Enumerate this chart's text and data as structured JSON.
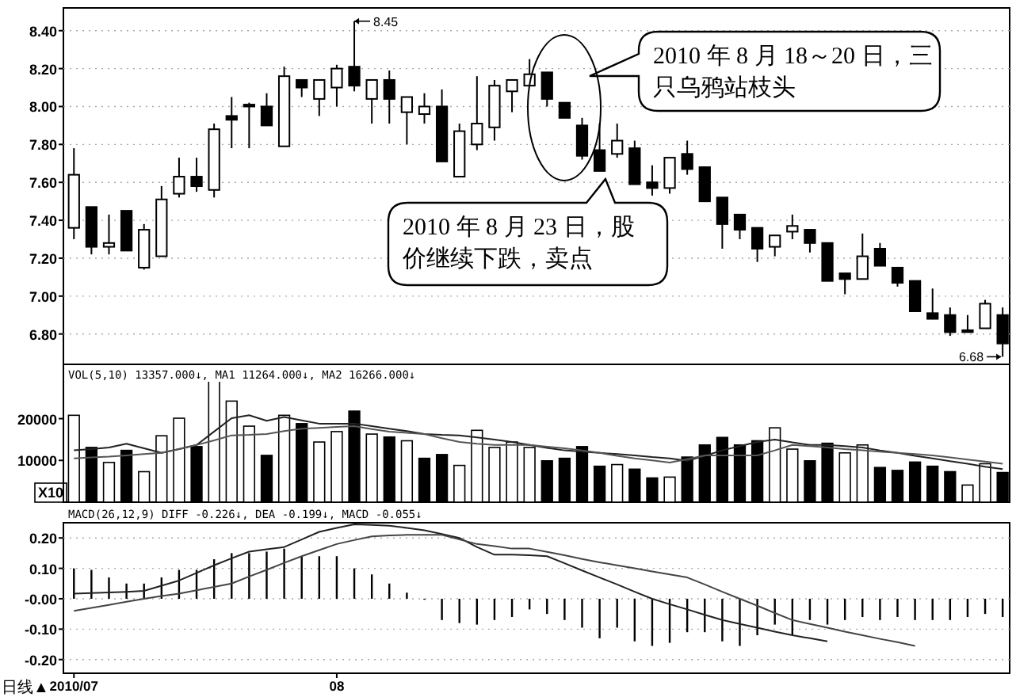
{
  "chart_data": [
    {
      "type": "candlestick",
      "ylim": [
        6.64,
        8.52
      ],
      "grid": "y",
      "tick_labels": "y",
      "yticks": [
        {
          "value": 6.8,
          "label": "6.80"
        },
        {
          "value": 7,
          "label": "7.00"
        },
        {
          "value": 7.2,
          "label": "7.20"
        },
        {
          "value": 7.4,
          "label": "7.40"
        },
        {
          "value": 7.6,
          "label": "7.60"
        },
        {
          "value": 7.8,
          "label": "7.80"
        },
        {
          "value": 8,
          "label": "8.00"
        },
        {
          "value": 8.2,
          "label": "8.20"
        },
        {
          "value": 8.4,
          "label": "8.40"
        }
      ],
      "categories": [
        null,
        null,
        null,
        null,
        null,
        null,
        null,
        null,
        null,
        null,
        null,
        null,
        null,
        null,
        null,
        null,
        null,
        null,
        null,
        null,
        null,
        null,
        null,
        null,
        null,
        null,
        null,
        null,
        null,
        null,
        null,
        null,
        null,
        null,
        null,
        null,
        null,
        null,
        null,
        null,
        null,
        null,
        null,
        null,
        null,
        null,
        null,
        null,
        null,
        null,
        null,
        null,
        null,
        null
      ],
      "ohlc": [
        [
          7.36,
          7.78,
          7.3,
          7.64
        ],
        [
          7.47,
          7.47,
          7.22,
          7.26
        ],
        [
          7.26,
          7.43,
          7.22,
          7.28
        ],
        [
          7.45,
          7.45,
          7.24,
          7.24
        ],
        [
          7.15,
          7.38,
          7.14,
          7.35
        ],
        [
          7.21,
          7.58,
          7.21,
          7.51
        ],
        [
          7.54,
          7.73,
          7.52,
          7.63
        ],
        [
          7.63,
          7.73,
          7.55,
          7.58
        ],
        [
          7.56,
          7.91,
          7.52,
          7.88
        ],
        [
          7.95,
          8.05,
          7.78,
          7.93
        ],
        [
          8.01,
          8.02,
          7.78,
          8.0
        ],
        [
          8.0,
          8.07,
          7.9,
          7.9
        ],
        [
          7.79,
          8.21,
          7.79,
          8.16
        ],
        [
          8.14,
          8.14,
          8.05,
          8.1
        ],
        [
          8.04,
          8.14,
          7.95,
          8.14
        ],
        [
          8.1,
          8.22,
          8.0,
          8.2
        ],
        [
          8.21,
          8.45,
          8.08,
          8.11
        ],
        [
          8.04,
          8.14,
          7.91,
          8.14
        ],
        [
          8.14,
          8.19,
          7.91,
          8.04
        ],
        [
          7.97,
          8.05,
          7.8,
          8.05
        ],
        [
          7.96,
          8.07,
          7.91,
          8.0
        ],
        [
          8.0,
          8.09,
          7.71,
          7.71
        ],
        [
          7.63,
          7.91,
          7.63,
          7.87
        ],
        [
          7.8,
          8.16,
          7.77,
          7.91
        ],
        [
          7.89,
          8.14,
          7.82,
          8.11
        ],
        [
          8.08,
          8.14,
          7.97,
          8.14
        ],
        [
          8.11,
          8.25,
          8.11,
          8.17
        ],
        [
          8.18,
          8.18,
          8.0,
          8.04
        ],
        [
          8.02,
          8.02,
          7.94,
          7.94
        ],
        [
          7.9,
          7.94,
          7.72,
          7.74
        ],
        [
          7.77,
          7.91,
          7.66,
          7.66
        ],
        [
          7.75,
          7.91,
          7.73,
          7.82
        ],
        [
          7.78,
          7.82,
          7.59,
          7.59
        ],
        [
          7.6,
          7.69,
          7.53,
          7.57
        ],
        [
          7.57,
          7.73,
          7.54,
          7.73
        ],
        [
          7.75,
          7.82,
          7.64,
          7.67
        ],
        [
          7.68,
          7.68,
          7.5,
          7.5
        ],
        [
          7.52,
          7.52,
          7.25,
          7.38
        ],
        [
          7.43,
          7.43,
          7.3,
          7.35
        ],
        [
          7.36,
          7.36,
          7.18,
          7.25
        ],
        [
          7.26,
          7.32,
          7.21,
          7.32
        ],
        [
          7.34,
          7.43,
          7.3,
          7.37
        ],
        [
          7.35,
          7.35,
          7.23,
          7.28
        ],
        [
          7.28,
          7.28,
          7.08,
          7.08
        ],
        [
          7.12,
          7.12,
          7.01,
          7.09
        ],
        [
          7.09,
          7.33,
          7.09,
          7.21
        ],
        [
          7.25,
          7.28,
          7.16,
          7.16
        ],
        [
          7.15,
          7.15,
          7.05,
          7.07
        ],
        [
          7.08,
          7.08,
          6.92,
          6.92
        ],
        [
          6.91,
          7.04,
          6.88,
          6.88
        ],
        [
          6.9,
          6.94,
          6.79,
          6.81
        ],
        [
          6.82,
          6.9,
          6.81,
          6.81
        ],
        [
          6.83,
          6.98,
          6.83,
          6.96
        ],
        [
          6.9,
          6.94,
          6.68,
          6.75
        ]
      ],
      "annotations": [
        "2010 年 8 月 18～20 日，三只乌鸦站枝头",
        "2010 年 8 月 23 日，股价继续下跌，卖点",
        "8.45",
        "6.68"
      ]
    },
    {
      "type": "bar",
      "ylim": [
        0,
        33000
      ],
      "tick_labels": "y",
      "yticks": [
        10000,
        20000
      ],
      "categories": [
        null,
        null,
        null,
        null,
        null,
        null,
        null,
        null,
        null,
        null,
        null,
        null,
        null,
        null,
        null,
        null,
        null,
        null,
        null,
        null,
        null,
        null,
        null,
        null,
        null,
        null,
        null,
        null,
        null,
        null,
        null,
        null,
        null,
        null,
        null,
        null,
        null,
        null,
        null,
        null,
        null,
        null,
        null,
        null,
        null,
        null,
        null,
        null,
        null,
        null,
        null,
        null,
        null,
        null
      ],
      "values": [
        20800,
        13100,
        9500,
        12400,
        7300,
        15900,
        20100,
        13300,
        29100,
        24200,
        18200,
        11200,
        20800,
        18800,
        14400,
        16900,
        21800,
        16300,
        15600,
        14700,
        10500,
        11400,
        8800,
        17200,
        13100,
        14400,
        13100,
        9900,
        10500,
        13300,
        8600,
        9000,
        7900,
        5800,
        6000,
        10800,
        13700,
        15500,
        13700,
        14700,
        17800,
        12700,
        9900,
        14100,
        11800,
        13700,
        8300,
        7600,
        9600,
        8600,
        7300,
        4100,
        9200,
        7100
      ],
      "colors": [
        "#ffffff",
        "#000000",
        "#ffffff",
        "#000000",
        "#ffffff",
        "#ffffff",
        "#ffffff",
        "#000000",
        "#ffffff",
        "#ffffff",
        "#ffffff",
        "#000000",
        "#ffffff",
        "#000000",
        "#ffffff",
        "#ffffff",
        "#000000",
        "#ffffff",
        "#000000",
        "#ffffff",
        "#000000",
        "#000000",
        "#ffffff",
        "#ffffff",
        "#ffffff",
        "#ffffff",
        "#ffffff",
        "#000000",
        "#000000",
        "#000000",
        "#000000",
        "#ffffff",
        "#000000",
        "#000000",
        "#ffffff",
        "#000000",
        "#000000",
        "#000000",
        "#000000",
        "#000000",
        "#ffffff",
        "#ffffff",
        "#000000",
        "#000000",
        "#ffffff",
        "#ffffff",
        "#000000",
        "#000000",
        "#000000",
        "#000000",
        "#000000",
        "#ffffff",
        "#ffffff",
        "#000000"
      ],
      "series": [
        {
          "type": "line",
          "color": "#222222",
          "values": [
            12400,
            12700,
            13100,
            14000,
            12900,
            11800,
            12700,
            13700,
            16900,
            20100,
            20800,
            19500,
            20400,
            19600,
            18800,
            18800,
            18800,
            18200,
            17600,
            17000,
            16300,
            16100,
            16000,
            15500,
            15000,
            14400,
            13700,
            13000,
            12400,
            12100,
            11800,
            11500,
            11200,
            10800,
            10500,
            9900,
            11100,
            12400,
            13400,
            14400,
            15000,
            14300,
            13700,
            13700,
            13400,
            13100,
            12400,
            11800,
            11100,
            10500,
            9800,
            9200,
            8500,
            7900
          ]
        },
        {
          "type": "line",
          "color": "#555555",
          "values": [
            10500,
            10700,
            10900,
            11200,
            11500,
            11800,
            12700,
            13700,
            14800,
            16000,
            16100,
            16300,
            17000,
            17600,
            17800,
            18000,
            18200,
            17500,
            16900,
            16600,
            16300,
            15300,
            14400,
            14000,
            13700,
            13700,
            13700,
            13300,
            12900,
            12400,
            11800,
            11100,
            10500,
            10000,
            9500,
            10300,
            11200,
            11200,
            11200,
            11200,
            12400,
            13700,
            13400,
            13100,
            12700,
            12400,
            12100,
            11800,
            11500,
            11200,
            10700,
            10200,
            9700,
            9200
          ]
        }
      ],
      "annotations": [
        "VOL(5,10) 13357.000↓, MA1 11264.000↓, MA2 16266.000↓",
        "X10"
      ]
    },
    {
      "type": "bar",
      "ylim": [
        -0.245,
        0.25
      ],
      "grid": "y",
      "yticks": [
        {
          "value": -0.2,
          "label": "-0.20"
        },
        {
          "value": -0.1,
          "label": "-0.10"
        },
        {
          "value": 0,
          "label": "-0.00"
        },
        {
          "value": 0.1,
          "label": "0.10"
        },
        {
          "value": 0.2,
          "label": "0.20"
        }
      ],
      "categories": [
        "2010/07",
        null,
        null,
        null,
        null,
        null,
        null,
        null,
        null,
        null,
        null,
        null,
        null,
        null,
        null,
        "08",
        null,
        null,
        null,
        null,
        null,
        null,
        null,
        null,
        null,
        null,
        null,
        null,
        null,
        null,
        null,
        null,
        null,
        null,
        null,
        null,
        null,
        null,
        null,
        null,
        null,
        null,
        null,
        null,
        null,
        null,
        null,
        null,
        null,
        null,
        null,
        null,
        null,
        null
      ],
      "series": [
        {
          "type": "bar",
          "color": "#000000",
          "values": [
            0.1,
            0.095,
            0.07,
            0.05,
            0.05,
            0.07,
            0.095,
            0.095,
            0.13,
            0.15,
            0.15,
            0.155,
            0.165,
            0.14,
            0.14,
            0.14,
            0.1,
            0.08,
            0.05,
            0.02,
            0.0,
            -0.07,
            -0.08,
            -0.085,
            -0.07,
            -0.06,
            -0.035,
            -0.05,
            -0.07,
            -0.095,
            -0.13,
            -0.095,
            -0.14,
            -0.155,
            -0.145,
            -0.11,
            -0.11,
            -0.14,
            -0.155,
            -0.12,
            -0.085,
            -0.12,
            -0.07,
            -0.085,
            -0.07,
            -0.06,
            -0.07,
            -0.06,
            -0.07,
            -0.07,
            -0.07,
            -0.06,
            -0.05,
            -0.06
          ]
        },
        {
          "type": "line",
          "color": "#222222",
          "values": [
            0.017,
            0.019,
            0.021,
            0.023,
            0.026,
            0.043,
            0.06,
            0.085,
            0.11,
            0.133,
            0.155,
            0.163,
            0.17,
            0.195,
            0.22,
            0.233,
            0.245,
            0.243,
            0.24,
            0.233,
            0.225,
            0.213,
            0.2,
            0.17,
            0.145,
            0.145,
            0.143,
            0.14,
            0.117,
            0.093,
            0.07,
            0.047,
            0.023,
            0.0,
            -0.018,
            -0.035,
            -0.053,
            -0.07,
            -0.083,
            -0.095,
            -0.108,
            -0.12,
            -0.13,
            -0.14,
            null,
            null,
            null,
            null,
            null,
            null,
            null,
            null,
            null,
            null
          ]
        },
        {
          "type": "line",
          "color": "#444444",
          "values": [
            -0.04,
            -0.03,
            -0.02,
            -0.01,
            0.0,
            0.009,
            0.017,
            0.028,
            0.039,
            0.05,
            0.073,
            0.095,
            0.118,
            0.14,
            0.16,
            0.18,
            0.193,
            0.205,
            0.208,
            0.21,
            0.21,
            0.21,
            0.195,
            0.18,
            0.173,
            0.165,
            0.165,
            0.154,
            0.143,
            0.131,
            0.12,
            0.11,
            0.1,
            0.09,
            0.08,
            0.07,
            0.047,
            0.023,
            0.0,
            -0.023,
            -0.047,
            -0.07,
            -0.083,
            -0.095,
            -0.108,
            -0.12,
            -0.132,
            -0.143,
            -0.155,
            null,
            null,
            null,
            null,
            null
          ]
        }
      ],
      "annotations": [
        "MACD(26,12,9) DIFF -0.226↓, DEA -0.199↓, MACD -0.055↓",
        "日线▲"
      ]
    }
  ]
}
